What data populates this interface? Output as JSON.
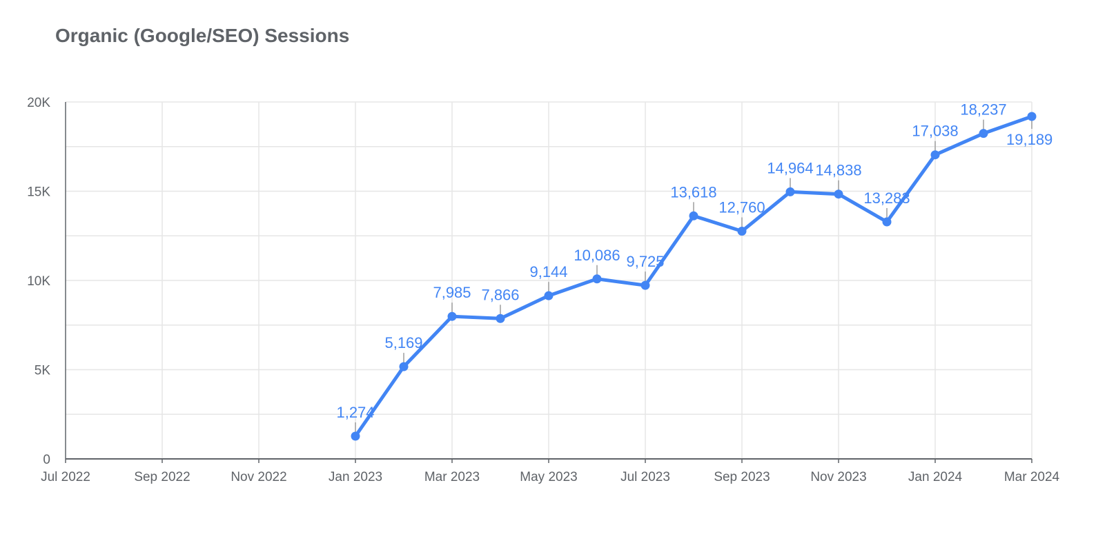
{
  "chart_data": {
    "type": "line",
    "title": "Organic (Google/SEO) Sessions",
    "x_ticks": [
      "Jul 2022",
      "Sep 2022",
      "Nov 2022",
      "Jan 2023",
      "Mar 2023",
      "May 2023",
      "Jul 2023",
      "Sep 2023",
      "Nov 2023",
      "Jan 2024",
      "Mar 2024"
    ],
    "y_ticks": [
      "0",
      "5K",
      "10K",
      "15K",
      "20K"
    ],
    "ylim": [
      0,
      20000
    ],
    "xlim": [
      "2022-07",
      "2024-03"
    ],
    "grid": true,
    "series": [
      {
        "color": "#4285f4",
        "points": [
          {
            "x": "2023-01",
            "y": 1274,
            "label": "1,274"
          },
          {
            "x": "2023-02",
            "y": 5169,
            "label": "5,169"
          },
          {
            "x": "2023-03",
            "y": 7985,
            "label": "7,985"
          },
          {
            "x": "2023-04",
            "y": 7866,
            "label": "7,866"
          },
          {
            "x": "2023-05",
            "y": 9144,
            "label": "9,144"
          },
          {
            "x": "2023-06",
            "y": 10086,
            "label": "10,086"
          },
          {
            "x": "2023-07",
            "y": 9725,
            "label": "9,725"
          },
          {
            "x": "2023-08",
            "y": 13618,
            "label": "13,618"
          },
          {
            "x": "2023-09",
            "y": 12760,
            "label": "12,760"
          },
          {
            "x": "2023-10",
            "y": 14964,
            "label": "14,964"
          },
          {
            "x": "2023-11",
            "y": 14838,
            "label": "14,838"
          },
          {
            "x": "2023-12",
            "y": 13283,
            "label": "13,283"
          },
          {
            "x": "2024-01",
            "y": 17038,
            "label": "17,038"
          },
          {
            "x": "2024-02",
            "y": 18237,
            "label": "18,237"
          },
          {
            "x": "2024-03",
            "y": 19189,
            "label": "19,189"
          }
        ]
      }
    ]
  }
}
